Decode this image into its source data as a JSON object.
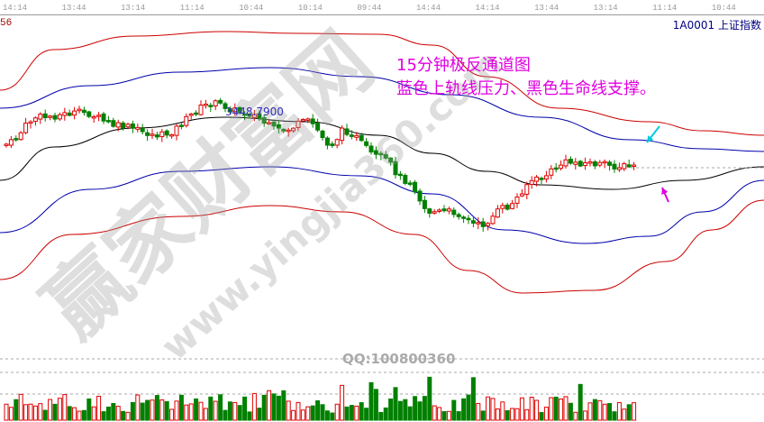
{
  "header": {
    "x_ticks": [
      "14:14",
      "13:44",
      "13:14",
      "11:14",
      "10:44",
      "10:14",
      "09:44",
      "14:44",
      "14:14",
      "13:44",
      "13:14",
      "11:14",
      "10:44"
    ],
    "left_value": "56",
    "symbol": "1A0001 上证指数"
  },
  "annotation": {
    "line1": "15分钟极反通道图",
    "line2": "蓝色上轨线压力、黑色生命线支撑。"
  },
  "chart_data": {
    "type": "candlestick",
    "interval": "15min",
    "price_label": "3448.7900",
    "x_ticks": [
      "14:14",
      "13:44",
      "13:14",
      "11:14",
      "10:44",
      "10:14",
      "09:44",
      "14:44",
      "14:14",
      "13:44",
      "13:14",
      "11:14",
      "10:44"
    ],
    "overlays": [
      {
        "color": "#cc0000",
        "role": "outer bands"
      },
      {
        "color": "#0000aa",
        "role": "upper/lower rails"
      },
      {
        "color": "#000000",
        "role": "midline"
      }
    ],
    "volume_panel": true
  },
  "colors": {
    "up": "#e00000",
    "down": "#008000",
    "arrow_upper": "#00c8e0",
    "arrow_lower": "#e000e0"
  },
  "watermark": {
    "main": "赢家财富网",
    "url": "www.yingjia360.com",
    "qq": "QQ:100800360"
  }
}
